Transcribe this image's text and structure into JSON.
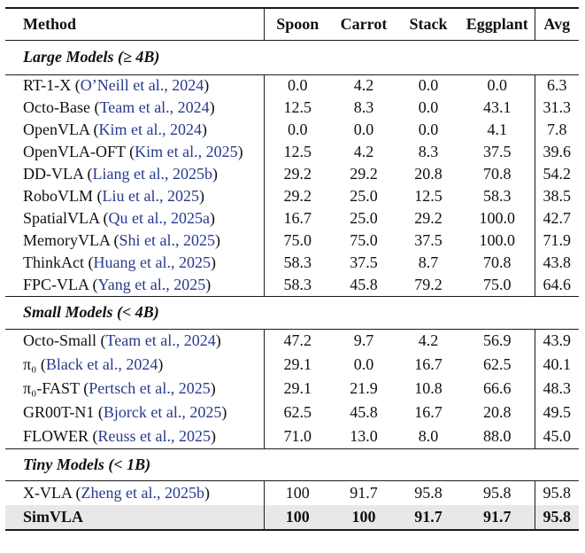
{
  "colors": {
    "citation_link": "#283a8e",
    "rule": "#1c1c1c",
    "highlight_row": "#e8e8e8",
    "text": "#111111"
  },
  "table": {
    "header": [
      "Method",
      "Spoon",
      "Carrot",
      "Stack",
      "Eggplant",
      "Avg"
    ],
    "sections": [
      {
        "label": "Large Models (≥ 4B)",
        "rows": [
          {
            "method": "RT-1-X",
            "citation": "O’Neill et al., 2024",
            "values": [
              "0.0",
              "4.2",
              "0.0",
              "0.0",
              "6.3"
            ]
          },
          {
            "method": "Octo-Base",
            "citation": "Team et al., 2024",
            "values": [
              "12.5",
              "8.3",
              "0.0",
              "43.1",
              "31.3"
            ]
          },
          {
            "method": "OpenVLA",
            "citation": "Kim et al., 2024",
            "values": [
              "0.0",
              "0.0",
              "0.0",
              "4.1",
              "7.8"
            ]
          },
          {
            "method": "OpenVLA-OFT",
            "citation": "Kim et al., 2025",
            "values": [
              "12.5",
              "4.2",
              "8.3",
              "37.5",
              "39.6"
            ]
          },
          {
            "method": "DD-VLA",
            "citation": "Liang et al., 2025b",
            "values": [
              "29.2",
              "29.2",
              "20.8",
              "70.8",
              "54.2"
            ]
          },
          {
            "method": "RoboVLM",
            "citation": "Liu et al., 2025",
            "values": [
              "29.2",
              "25.0",
              "12.5",
              "58.3",
              "38.5"
            ]
          },
          {
            "method": "SpatialVLA",
            "citation": "Qu et al., 2025a",
            "values": [
              "16.7",
              "25.0",
              "29.2",
              "100.0",
              "42.7"
            ]
          },
          {
            "method": "MemoryVLA",
            "citation": "Shi et al., 2025",
            "values": [
              "75.0",
              "75.0",
              "37.5",
              "100.0",
              "71.9"
            ]
          },
          {
            "method": "ThinkAct",
            "citation": "Huang et al., 2025",
            "values": [
              "58.3",
              "37.5",
              "8.7",
              "70.8",
              "43.8"
            ]
          },
          {
            "method": "FPC-VLA",
            "citation": "Yang et al., 2025",
            "values": [
              "58.3",
              "45.8",
              "79.2",
              "75.0",
              "64.6"
            ]
          }
        ]
      },
      {
        "label": "Small Models (< 4B)",
        "rows": [
          {
            "method": "Octo-Small",
            "citation": "Team et al., 2024",
            "values": [
              "47.2",
              "9.7",
              "4.2",
              "56.9",
              "43.9"
            ]
          },
          {
            "method": "π₀",
            "citation": "Black et al., 2024",
            "values": [
              "29.1",
              "0.0",
              "16.7",
              "62.5",
              "40.1"
            ]
          },
          {
            "method": "π₀-FAST",
            "citation": "Pertsch et al., 2025",
            "values": [
              "29.1",
              "21.9",
              "10.8",
              "66.6",
              "48.3"
            ]
          },
          {
            "method": "GR00T-N1",
            "citation": "Bjorck et al., 2025",
            "values": [
              "62.5",
              "45.8",
              "16.7",
              "20.8",
              "49.5"
            ]
          },
          {
            "method": "FLOWER",
            "citation": "Reuss et al., 2025",
            "values": [
              "71.0",
              "13.0",
              "8.0",
              "88.0",
              "45.0"
            ]
          }
        ]
      },
      {
        "label": "Tiny Models (< 1B)",
        "rows": [
          {
            "method": "X-VLA",
            "citation": "Zheng et al., 2025b",
            "values": [
              "100",
              "91.7",
              "95.8",
              "95.8",
              "95.8"
            ]
          },
          {
            "method": "SimVLA",
            "citation": "",
            "values": [
              "100",
              "100",
              "91.7",
              "91.7",
              "95.8"
            ],
            "highlight": true
          }
        ]
      }
    ]
  }
}
